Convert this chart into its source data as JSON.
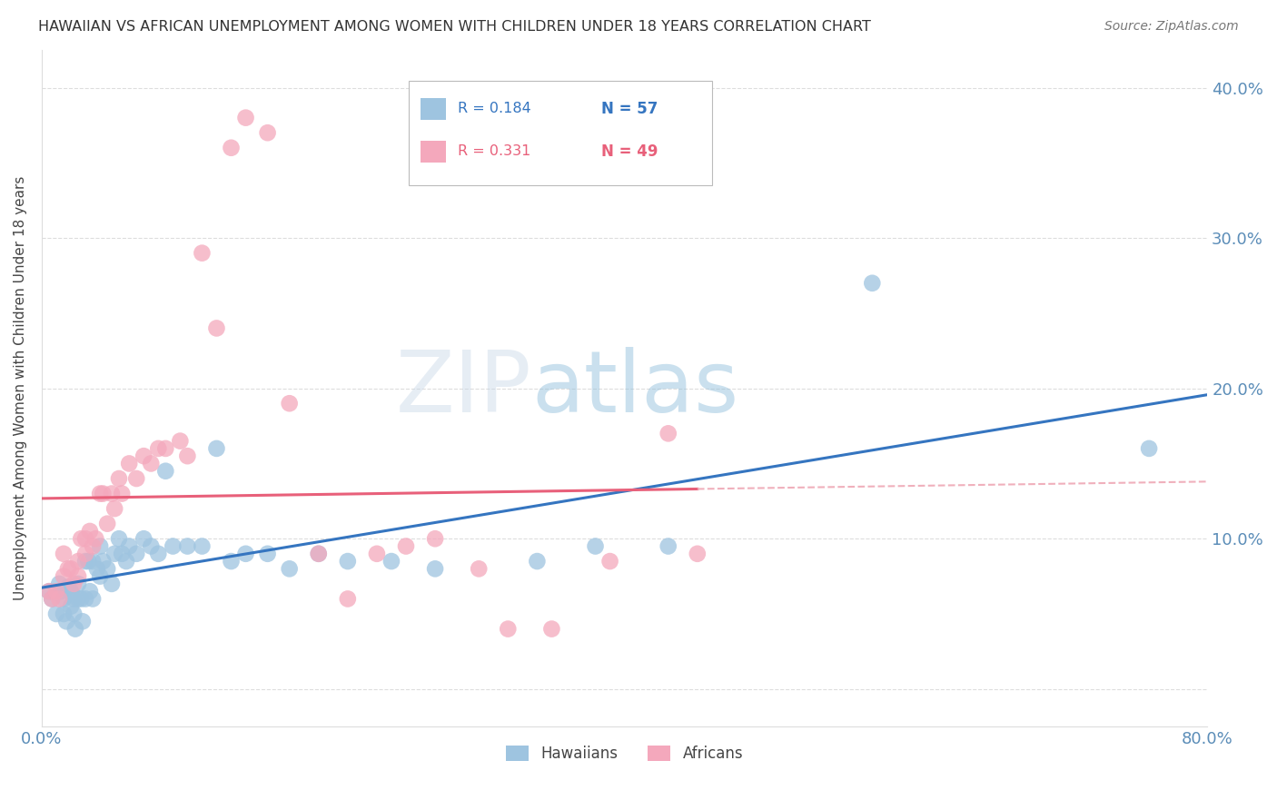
{
  "title": "HAWAIIAN VS AFRICAN UNEMPLOYMENT AMONG WOMEN WITH CHILDREN UNDER 18 YEARS CORRELATION CHART",
  "source": "Source: ZipAtlas.com",
  "ylabel": "Unemployment Among Women with Children Under 18 years",
  "xlim": [
    0.0,
    0.8
  ],
  "ylim": [
    -0.025,
    0.425
  ],
  "yticks": [
    0.0,
    0.1,
    0.2,
    0.3,
    0.4
  ],
  "ytick_labels": [
    "",
    "10.0%",
    "20.0%",
    "30.0%",
    "40.0%"
  ],
  "xticks": [
    0.0,
    0.1,
    0.2,
    0.3,
    0.4,
    0.5,
    0.6,
    0.7,
    0.8
  ],
  "xtick_labels": [
    "0.0%",
    "",
    "",
    "",
    "",
    "",
    "",
    "",
    "80.0%"
  ],
  "hawaiians_color": "#9EC4E0",
  "africans_color": "#F4A8BC",
  "hawaiians_line_color": "#3575C0",
  "africans_line_color": "#E8607A",
  "africans_dashed_color": "#F0B0BC",
  "watermark_zip": "ZIP",
  "watermark_atlas": "atlas",
  "background_color": "#ffffff",
  "grid_color": "#dddddd",
  "axis_color": "#5B8DB8",
  "title_color": "#333333",
  "hawaiians_x": [
    0.005,
    0.007,
    0.01,
    0.012,
    0.013,
    0.015,
    0.015,
    0.017,
    0.018,
    0.02,
    0.02,
    0.022,
    0.022,
    0.023,
    0.025,
    0.025,
    0.027,
    0.028,
    0.03,
    0.03,
    0.032,
    0.033,
    0.035,
    0.035,
    0.038,
    0.04,
    0.04,
    0.042,
    0.045,
    0.048,
    0.05,
    0.053,
    0.055,
    0.058,
    0.06,
    0.065,
    0.07,
    0.075,
    0.08,
    0.085,
    0.09,
    0.1,
    0.11,
    0.12,
    0.13,
    0.14,
    0.155,
    0.17,
    0.19,
    0.21,
    0.24,
    0.27,
    0.34,
    0.38,
    0.43,
    0.57,
    0.76
  ],
  "hawaiians_y": [
    0.065,
    0.06,
    0.05,
    0.07,
    0.065,
    0.06,
    0.05,
    0.045,
    0.068,
    0.065,
    0.055,
    0.06,
    0.05,
    0.04,
    0.07,
    0.06,
    0.06,
    0.045,
    0.085,
    0.06,
    0.085,
    0.065,
    0.085,
    0.06,
    0.08,
    0.095,
    0.075,
    0.085,
    0.08,
    0.07,
    0.09,
    0.1,
    0.09,
    0.085,
    0.095,
    0.09,
    0.1,
    0.095,
    0.09,
    0.145,
    0.095,
    0.095,
    0.095,
    0.16,
    0.085,
    0.09,
    0.09,
    0.08,
    0.09,
    0.085,
    0.085,
    0.08,
    0.085,
    0.095,
    0.095,
    0.27,
    0.16
  ],
  "africans_x": [
    0.005,
    0.007,
    0.01,
    0.012,
    0.015,
    0.015,
    0.018,
    0.02,
    0.022,
    0.025,
    0.025,
    0.027,
    0.03,
    0.03,
    0.033,
    0.035,
    0.037,
    0.04,
    0.042,
    0.045,
    0.048,
    0.05,
    0.053,
    0.055,
    0.06,
    0.065,
    0.07,
    0.075,
    0.08,
    0.085,
    0.095,
    0.1,
    0.11,
    0.12,
    0.13,
    0.14,
    0.155,
    0.17,
    0.19,
    0.21,
    0.23,
    0.25,
    0.27,
    0.3,
    0.32,
    0.35,
    0.39,
    0.43,
    0.45
  ],
  "africans_y": [
    0.065,
    0.06,
    0.065,
    0.06,
    0.09,
    0.075,
    0.08,
    0.08,
    0.07,
    0.085,
    0.075,
    0.1,
    0.1,
    0.09,
    0.105,
    0.095,
    0.1,
    0.13,
    0.13,
    0.11,
    0.13,
    0.12,
    0.14,
    0.13,
    0.15,
    0.14,
    0.155,
    0.15,
    0.16,
    0.16,
    0.165,
    0.155,
    0.29,
    0.24,
    0.36,
    0.38,
    0.37,
    0.19,
    0.09,
    0.06,
    0.09,
    0.095,
    0.1,
    0.08,
    0.04,
    0.04,
    0.085,
    0.17,
    0.09
  ]
}
